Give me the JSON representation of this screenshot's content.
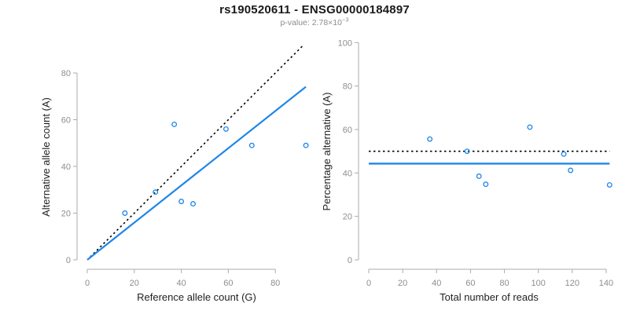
{
  "header": {
    "title": "rs190520611 - ENSG00000184897",
    "subtitle_prefix": "p-value: 2.78×10",
    "subtitle_exponent": "−3"
  },
  "colors": {
    "accent_blue": "#1E86E8",
    "reference_black": "#000000",
    "axis_line": "#ABABAB",
    "tick_label": "#8E8E8E",
    "axis_label": "#1F1F1F",
    "background": "#FFFFFF"
  },
  "chart_data": [
    {
      "type": "scatter",
      "name": "allele-counts-scatter",
      "xlabel": "Reference allele count (G)",
      "ylabel": "Alternative allele count (A)",
      "xlim": [
        0,
        95
      ],
      "ylim": [
        0,
        93
      ],
      "xticks": [
        0,
        20,
        40,
        60,
        80
      ],
      "yticks": [
        0,
        20,
        40,
        60,
        80
      ],
      "grid": false,
      "legend": "none",
      "points": [
        [
          16,
          20
        ],
        [
          29,
          29
        ],
        [
          37,
          58
        ],
        [
          40,
          25
        ],
        [
          45,
          24
        ],
        [
          59,
          56
        ],
        [
          70,
          49
        ],
        [
          93,
          49
        ]
      ],
      "lines": [
        {
          "name": "identity-line",
          "style": "dashed",
          "color": "#000000",
          "width": 1.6,
          "x1": 1.2,
          "y1": 1.2,
          "x2": 91.5,
          "y2": 91.5
        },
        {
          "name": "fit-line",
          "style": "solid",
          "color": "#1E86E8",
          "width": 2.2,
          "x1": 0,
          "y1": 0,
          "x2": 93,
          "y2": 74.1
        }
      ]
    },
    {
      "type": "scatter",
      "name": "percentage-alternative-scatter",
      "xlabel": "Total number of reads",
      "ylabel": "Percentage alternative (A)",
      "xlim": [
        0,
        142
      ],
      "ylim": [
        0,
        100
      ],
      "xticks": [
        0,
        20,
        40,
        60,
        80,
        100,
        120,
        140
      ],
      "yticks": [
        0,
        20,
        40,
        60,
        80,
        100
      ],
      "grid": false,
      "legend": "none",
      "points": [
        [
          36,
          55.6
        ],
        [
          58,
          50
        ],
        [
          65,
          38.5
        ],
        [
          69,
          34.8
        ],
        [
          95,
          61.1
        ],
        [
          115,
          48.7
        ],
        [
          119,
          41.2
        ],
        [
          142,
          34.5
        ]
      ],
      "lines": [
        {
          "name": "fifty-percent-line",
          "style": "dashed",
          "color": "#000000",
          "width": 1.6,
          "x1": 0,
          "y1": 50,
          "x2": 142,
          "y2": 50
        },
        {
          "name": "mean-percentage-line",
          "style": "solid",
          "color": "#1E86E8",
          "width": 2.4,
          "x1": 0,
          "y1": 44.3,
          "x2": 142,
          "y2": 44.3
        }
      ]
    }
  ]
}
